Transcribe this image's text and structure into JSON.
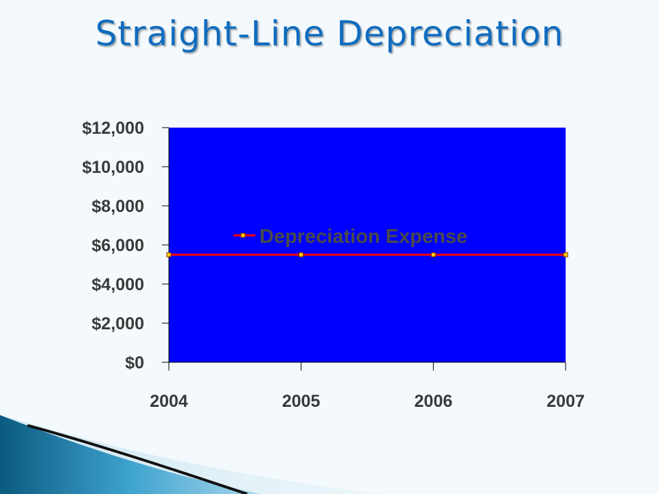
{
  "slide": {
    "title": "Straight-Line Depreciation"
  },
  "colors": {
    "title": "#0f6cc0",
    "plot_area": "#0000ff",
    "series_line": "#ff0000",
    "marker_fill": "#ffcc00"
  },
  "chart_data": {
    "type": "line",
    "categories": [
      "2004",
      "2005",
      "2006",
      "2007"
    ],
    "series": [
      {
        "name": "Depreciation Expense",
        "values": [
          5500,
          5500,
          5500,
          5500
        ]
      }
    ],
    "ylim": [
      0,
      12000
    ],
    "yticks": [
      0,
      2000,
      4000,
      6000,
      8000,
      10000,
      12000
    ],
    "ytick_labels": [
      "$0",
      "$2,000",
      "$4,000",
      "$6,000",
      "$8,000",
      "$10,000",
      "$12,000"
    ],
    "legend_position": "inside-center",
    "grid": false
  }
}
